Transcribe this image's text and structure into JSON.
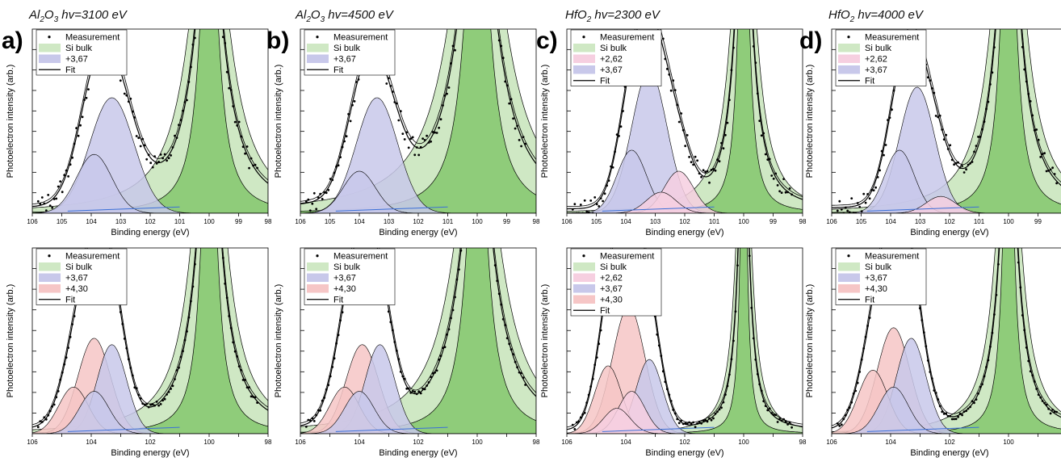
{
  "columns": [
    {
      "label": "a)",
      "material": "Al",
      "material_sub": "2",
      "material_rest": "O",
      "material_sub2": "3",
      "energy": " hv=3100 eV"
    },
    {
      "label": "b)",
      "material": "Al",
      "material_sub": "2",
      "material_rest": "O",
      "material_sub2": "3",
      "energy": " hv=4500 eV"
    },
    {
      "label": "c)",
      "material": "HfO",
      "material_sub": "2",
      "material_rest": "",
      "material_sub2": "",
      "energy": " hv=2300 eV"
    },
    {
      "label": "d)",
      "material": "HfO",
      "material_sub": "2",
      "material_rest": "",
      "material_sub2": "",
      "energy": " hv=4000 eV"
    }
  ],
  "colors": {
    "si_bulk": "#cfe8c4",
    "si_bulk_dark": "#8fcc7a",
    "c262": "#f6cfe0",
    "c367": "#c8c8ea",
    "c430": "#f6c6c6",
    "fit": "#000000",
    "measurement": "#000000"
  },
  "chart_data": [
    {
      "type": "line",
      "panel": "a-top",
      "xlabel": "Binding energy (eV)",
      "ylabel": "Photoelectron intensity (arb.)",
      "xlim": [
        106,
        98
      ],
      "x_ticks": [
        "106",
        "105",
        "104",
        "103",
        "102",
        "101",
        "100",
        "99",
        "98"
      ],
      "legend": [
        "Measurement",
        "Si bulk",
        "+3,67",
        "Fit"
      ],
      "series": [
        {
          "name": "+3,67",
          "center": 103.3,
          "amplitude": 0.55,
          "width": 0.75
        },
        {
          "name": "+3,67",
          "center": 103.9,
          "amplitude": 0.28,
          "width": 0.6
        },
        {
          "name": "Si bulk",
          "center": 100.0,
          "amplitude": 1.6,
          "width": 0.35
        }
      ]
    },
    {
      "type": "line",
      "panel": "b-top",
      "xlabel": "Binding energy (eV)",
      "ylabel": "Photoelectron intensity (arb.)",
      "xlim": [
        106,
        98
      ],
      "x_ticks": [
        "106",
        "105",
        "104",
        "103",
        "102",
        "101",
        "100",
        "99",
        "98"
      ],
      "legend": [
        "Measurement",
        "Si bulk",
        "+3,67",
        "Fit"
      ],
      "series": [
        {
          "name": "+3,67",
          "center": 103.4,
          "amplitude": 0.55,
          "width": 0.7
        },
        {
          "name": "+3,67",
          "center": 104.0,
          "amplitude": 0.2,
          "width": 0.55
        },
        {
          "name": "Si bulk",
          "center": 100.0,
          "amplitude": 1.8,
          "width": 0.45
        }
      ]
    },
    {
      "type": "line",
      "panel": "c-top",
      "xlabel": "Binding energy (eV)",
      "ylabel": "Photoelectron intensity (arb.)",
      "xlim": [
        106,
        98
      ],
      "x_ticks": [
        "106",
        "105",
        "104",
        "103",
        "102",
        "101",
        "100",
        "99",
        "98"
      ],
      "legend": [
        "Measurement",
        "Si bulk",
        "+2,62",
        "+3,67",
        "Fit"
      ],
      "series": [
        {
          "name": "+3,67",
          "center": 103.2,
          "amplitude": 0.68,
          "width": 0.6
        },
        {
          "name": "+3,67",
          "center": 103.8,
          "amplitude": 0.3,
          "width": 0.5
        },
        {
          "name": "+2,62",
          "center": 102.2,
          "amplitude": 0.2,
          "width": 0.5
        },
        {
          "name": "+2,62",
          "center": 102.8,
          "amplitude": 0.1,
          "width": 0.5
        },
        {
          "name": "Si bulk",
          "center": 100.0,
          "amplitude": 1.8,
          "width": 0.2
        }
      ]
    },
    {
      "type": "line",
      "panel": "d-top",
      "xlabel": "Binding energy (eV)",
      "ylabel": "Photoelectron intensity (arb.)",
      "xlim": [
        106,
        98
      ],
      "x_ticks": [
        "106",
        "105",
        "104",
        "103",
        "102",
        "101",
        "100",
        "99",
        "98"
      ],
      "legend": [
        "Measurement",
        "Si bulk",
        "+2,62",
        "+3,67",
        "Fit"
      ],
      "series": [
        {
          "name": "+3,67",
          "center": 103.1,
          "amplitude": 0.6,
          "width": 0.6
        },
        {
          "name": "+3,67",
          "center": 103.7,
          "amplitude": 0.3,
          "width": 0.5
        },
        {
          "name": "+2,62",
          "center": 102.3,
          "amplitude": 0.08,
          "width": 0.5
        },
        {
          "name": "Si bulk",
          "center": 100.0,
          "amplitude": 1.8,
          "width": 0.28
        }
      ]
    },
    {
      "type": "line",
      "panel": "a-bottom",
      "xlabel": "Binding energy (eV)",
      "ylabel": "Photoelectron intensity (arb.)",
      "xlim": [
        106,
        98
      ],
      "x_ticks": [
        "106",
        "",
        "104",
        "",
        "102",
        "",
        "100",
        "",
        "98"
      ],
      "legend": [
        "Measurement",
        "Si bulk",
        "+3,67",
        "+4,30",
        "Fit"
      ],
      "series": [
        {
          "name": "+4,30",
          "center": 103.9,
          "amplitude": 0.45,
          "width": 0.55
        },
        {
          "name": "+3,67",
          "center": 103.3,
          "amplitude": 0.42,
          "width": 0.5
        },
        {
          "name": "+4,30",
          "center": 104.6,
          "amplitude": 0.22,
          "width": 0.5
        },
        {
          "name": "+3,67",
          "center": 103.9,
          "amplitude": 0.2,
          "width": 0.5
        },
        {
          "name": "Si bulk",
          "center": 100.0,
          "amplitude": 1.8,
          "width": 0.28
        }
      ]
    },
    {
      "type": "line",
      "panel": "b-bottom",
      "xlabel": "Binding energy (eV)",
      "ylabel": "Photoelectron intensity (arb.)",
      "xlim": [
        106,
        98
      ],
      "x_ticks": [
        "106",
        "",
        "104",
        "",
        "102",
        "",
        "100",
        "",
        "98"
      ],
      "legend": [
        "Measurement",
        "Si bulk",
        "+3,67",
        "+4,30",
        "Fit"
      ],
      "series": [
        {
          "name": "+4,30",
          "center": 103.9,
          "amplitude": 0.42,
          "width": 0.55
        },
        {
          "name": "+3,67",
          "center": 103.3,
          "amplitude": 0.42,
          "width": 0.5
        },
        {
          "name": "+4,30",
          "center": 104.5,
          "amplitude": 0.22,
          "width": 0.5
        },
        {
          "name": "+3,67",
          "center": 104.0,
          "amplitude": 0.2,
          "width": 0.5
        },
        {
          "name": "Si bulk",
          "center": 100.0,
          "amplitude": 1.6,
          "width": 0.4
        }
      ]
    },
    {
      "type": "line",
      "panel": "c-bottom",
      "xlabel": "Binding energy (eV)",
      "ylabel": "Photoelectron intensity (arb.)",
      "xlim": [
        106,
        98
      ],
      "x_ticks": [
        "106",
        "",
        "104",
        "",
        "102",
        "",
        "100",
        "",
        "98"
      ],
      "legend": [
        "Measurement",
        "Si bulk",
        "+2,62",
        "+3,67",
        "+4,30",
        "Fit"
      ],
      "series": [
        {
          "name": "+4,30",
          "center": 103.9,
          "amplitude": 0.6,
          "width": 0.55
        },
        {
          "name": "+3,67",
          "center": 103.2,
          "amplitude": 0.35,
          "width": 0.45
        },
        {
          "name": "+4,30",
          "center": 104.6,
          "amplitude": 0.32,
          "width": 0.45
        },
        {
          "name": "+2,62",
          "center": 103.8,
          "amplitude": 0.2,
          "width": 0.45
        },
        {
          "name": "+2,62",
          "center": 104.3,
          "amplitude": 0.12,
          "width": 0.45
        },
        {
          "name": "Si bulk",
          "center": 100.0,
          "amplitude": 1.8,
          "width": 0.12
        }
      ]
    },
    {
      "type": "line",
      "panel": "d-bottom",
      "xlabel": "Binding energy (eV)",
      "ylabel": "Photoelectron intensity (arb.)",
      "xlim": [
        106,
        98
      ],
      "x_ticks": [
        "106",
        "",
        "104",
        "",
        "102",
        "",
        "100",
        "",
        "98"
      ],
      "legend": [
        "Measurement",
        "Si bulk",
        "+3,67",
        "+4,30",
        "Fit"
      ],
      "series": [
        {
          "name": "+4,30",
          "center": 103.9,
          "amplitude": 0.5,
          "width": 0.55
        },
        {
          "name": "+3,67",
          "center": 103.3,
          "amplitude": 0.45,
          "width": 0.5
        },
        {
          "name": "+4,30",
          "center": 104.6,
          "amplitude": 0.3,
          "width": 0.5
        },
        {
          "name": "+3,67",
          "center": 103.9,
          "amplitude": 0.22,
          "width": 0.5
        },
        {
          "name": "Si bulk",
          "center": 100.0,
          "amplitude": 1.8,
          "width": 0.2
        }
      ]
    }
  ]
}
